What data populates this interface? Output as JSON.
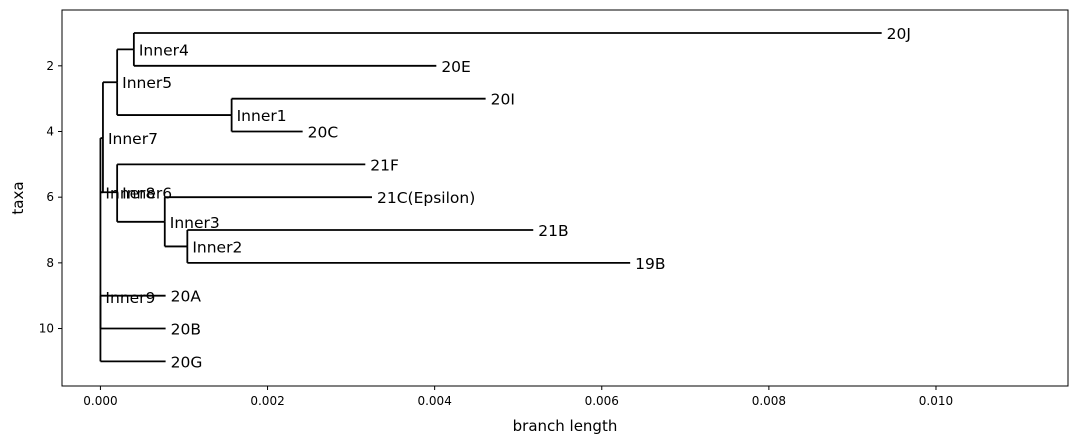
{
  "chart_data": {
    "type": "tree",
    "xlabel": "branch length",
    "ylabel": "taxa",
    "xlim": [
      -0.00046,
      0.01158
    ],
    "ylim": [
      0.3,
      11.75
    ],
    "x_ticks": [
      {
        "value": 0.0,
        "label": "0.000"
      },
      {
        "value": 0.002,
        "label": "0.002"
      },
      {
        "value": 0.004,
        "label": "0.004"
      },
      {
        "value": 0.006,
        "label": "0.006"
      },
      {
        "value": 0.008,
        "label": "0.008"
      },
      {
        "value": 0.01,
        "label": "0.010"
      }
    ],
    "y_ticks": [
      {
        "value": 2,
        "label": "2"
      },
      {
        "value": 4,
        "label": "4"
      },
      {
        "value": 6,
        "label": "6"
      },
      {
        "value": 8,
        "label": "8"
      },
      {
        "value": 10,
        "label": "10"
      }
    ],
    "grid": false,
    "nodes": [
      {
        "id": "Inner9",
        "parent": null,
        "x": 0.0,
        "y": 9.04,
        "label": "Inner9"
      },
      {
        "id": "Inner7",
        "parent": "Inner9",
        "x": 3e-05,
        "y": 4.2,
        "label": "Inner7"
      },
      {
        "id": "Inner5",
        "parent": "Inner7",
        "x": 0.0002,
        "y": 2.5,
        "label": "Inner5"
      },
      {
        "id": "Inner4",
        "parent": "Inner5",
        "x": 0.0004,
        "y": 1.5,
        "label": "Inner4"
      },
      {
        "id": "20J",
        "parent": "Inner4",
        "x": 0.00935,
        "y": 1.0,
        "label": "20J"
      },
      {
        "id": "20E",
        "parent": "Inner4",
        "x": 0.00402,
        "y": 2.0,
        "label": "20E"
      },
      {
        "id": "Inner1",
        "parent": "Inner5",
        "x": 0.00157,
        "y": 3.5,
        "label": "Inner1"
      },
      {
        "id": "20I",
        "parent": "Inner1",
        "x": 0.00461,
        "y": 3.0,
        "label": "20I"
      },
      {
        "id": "20C",
        "parent": "Inner1",
        "x": 0.00242,
        "y": 4.0,
        "label": "20C"
      },
      {
        "id": "Inner8",
        "parent": "Inner7",
        "x": 0.0,
        "y": 5.85,
        "label": "Inner8"
      },
      {
        "id": "Inner6",
        "parent": "Inner8",
        "x": 0.0002,
        "y": 5.85,
        "label": "Inner6"
      },
      {
        "id": "21F",
        "parent": "Inner6",
        "x": 0.00317,
        "y": 5.0,
        "label": "21F"
      },
      {
        "id": "Inner3",
        "parent": "Inner6",
        "x": 0.00077,
        "y": 6.75,
        "label": "Inner3"
      },
      {
        "id": "21C(Epsilon)",
        "parent": "Inner3",
        "x": 0.00325,
        "y": 6.0,
        "label": "21C(Epsilon)"
      },
      {
        "id": "Inner2",
        "parent": "Inner3",
        "x": 0.00104,
        "y": 7.5,
        "label": "Inner2"
      },
      {
        "id": "21B",
        "parent": "Inner2",
        "x": 0.00518,
        "y": 7.0,
        "label": "21B"
      },
      {
        "id": "19B",
        "parent": "Inner2",
        "x": 0.00634,
        "y": 8.0,
        "label": "19B"
      },
      {
        "id": "20A",
        "parent": "Inner9",
        "x": 0.00078,
        "y": 9.0,
        "label": "20A"
      },
      {
        "id": "20B",
        "parent": "Inner9",
        "x": 0.00078,
        "y": 10.0,
        "label": "20B"
      },
      {
        "id": "20G",
        "parent": "Inner9",
        "x": 0.00078,
        "y": 11.0,
        "label": "20G"
      }
    ],
    "line_color": "#000000"
  }
}
